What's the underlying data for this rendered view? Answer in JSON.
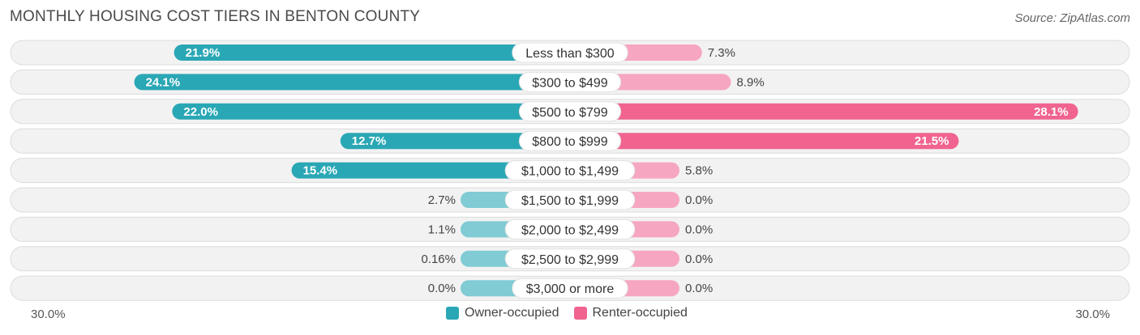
{
  "title": "MONTHLY HOUSING COST TIERS IN BENTON COUNTY",
  "source": "Source: ZipAtlas.com",
  "colors": {
    "owner_dark": "#2aa7b5",
    "owner_light": "#80cbd4",
    "renter_dark": "#f0648f",
    "renter_light": "#f6a6c0"
  },
  "chart_data": {
    "type": "bar",
    "orientation": "horizontal-diverging",
    "categories": [
      "Less than $300",
      "$300 to $499",
      "$500 to $799",
      "$800 to $999",
      "$1,000 to $1,499",
      "$1,500 to $1,999",
      "$2,000 to $2,499",
      "$2,500 to $2,999",
      "$3,000 or more"
    ],
    "series": [
      {
        "name": "Owner-occupied",
        "values": [
          21.9,
          24.1,
          22.0,
          12.7,
          15.4,
          2.7,
          1.1,
          0.16,
          0.0
        ],
        "labels": [
          "21.9%",
          "24.1%",
          "22.0%",
          "12.7%",
          "15.4%",
          "2.7%",
          "1.1%",
          "0.16%",
          "0.0%"
        ]
      },
      {
        "name": "Renter-occupied",
        "values": [
          7.3,
          8.9,
          28.1,
          21.5,
          5.8,
          0.0,
          0.0,
          0.0,
          0.0
        ],
        "labels": [
          "7.3%",
          "8.9%",
          "28.1%",
          "21.5%",
          "5.8%",
          "0.0%",
          "0.0%",
          "0.0%",
          "0.0%"
        ]
      }
    ],
    "axis": {
      "left_label": "30.0%",
      "right_label": "30.0%",
      "max": 30.0
    },
    "legend_position": "bottom-center"
  }
}
